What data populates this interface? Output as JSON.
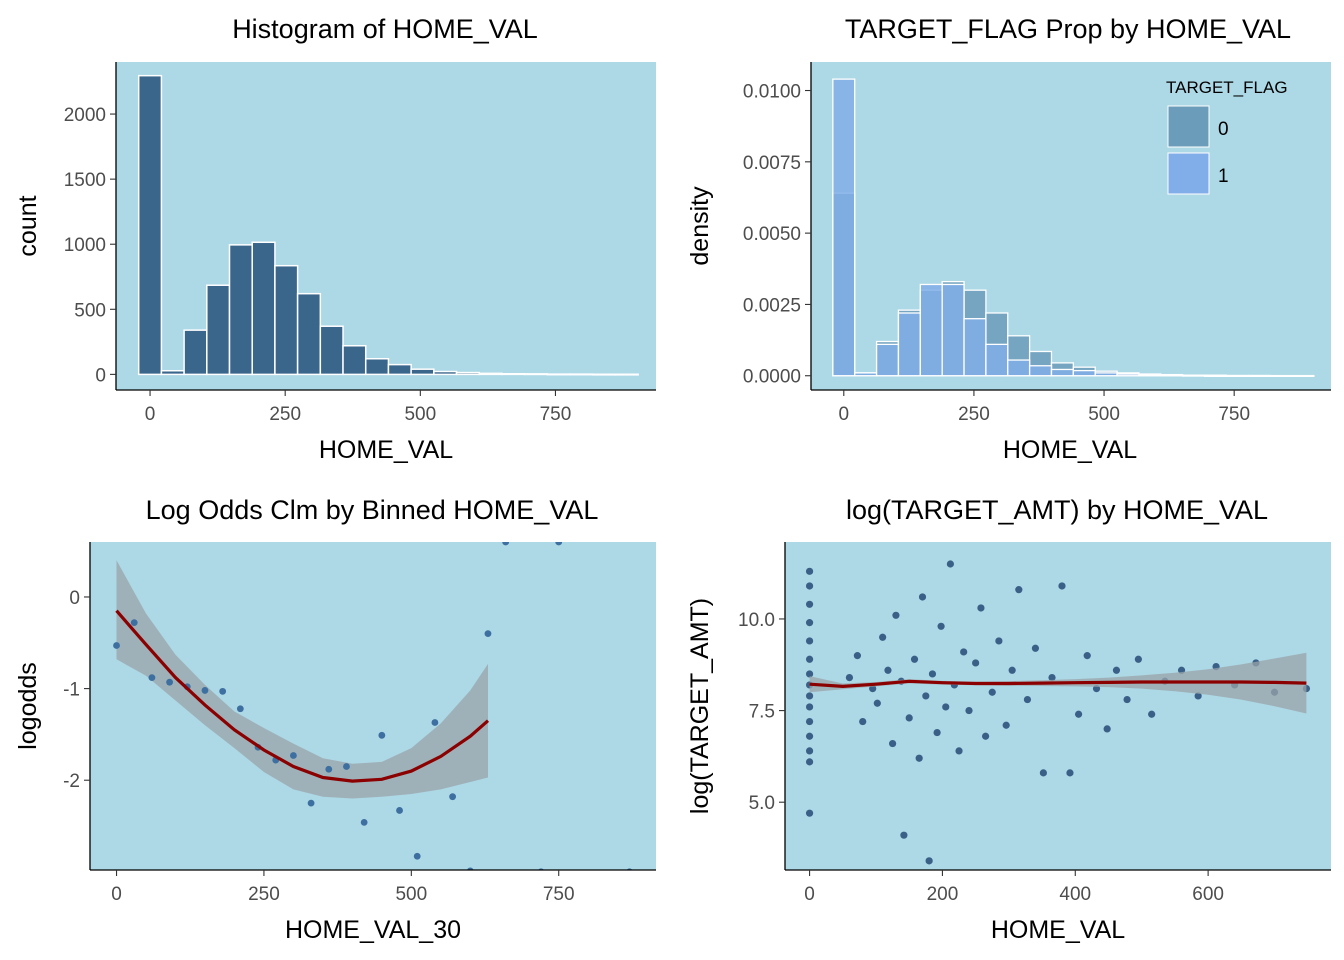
{
  "figure": {
    "panel_background": "#add8e6",
    "colors": {
      "bar_fill": "#3a668c",
      "bar_outline": "#ffffff",
      "fill_0": "#6b9cba",
      "fill_1": "#81aee8",
      "points": "#3d6fa0",
      "scatter_points": "#3a6088",
      "smooth_line": "#8b0000",
      "ci_band": "#9aa4a8"
    }
  },
  "chart_data": [
    {
      "id": "p1",
      "type": "bar",
      "title": "Histogram of HOME_VAL",
      "xlabel": "HOME_VAL",
      "ylabel": "count",
      "xlim": [
        -63,
        936
      ],
      "ylim": [
        -120,
        2400
      ],
      "xticks": [
        0,
        250,
        500,
        750
      ],
      "yticks": [
        0,
        500,
        1000,
        1500,
        2000
      ],
      "bin_width": 42,
      "bin_starts": [
        -21,
        21,
        63,
        105,
        147,
        189,
        231,
        273,
        315,
        357,
        399,
        441,
        483,
        525,
        567,
        609,
        651,
        693,
        735,
        777,
        819,
        861
      ],
      "values": [
        2295,
        28,
        340,
        685,
        995,
        1015,
        835,
        620,
        370,
        220,
        120,
        75,
        40,
        22,
        14,
        8,
        5,
        4,
        2,
        2,
        1,
        1
      ]
    },
    {
      "id": "p2",
      "type": "bar",
      "title": "TARGET_FLAG Prop by HOME_VAL",
      "xlabel": "HOME_VAL",
      "ylabel": "density",
      "xlim": [
        -63,
        936
      ],
      "ylim": [
        -0.0005,
        0.011
      ],
      "xticks": [
        0,
        250,
        500,
        750
      ],
      "yticks": [
        0.0,
        0.0025,
        0.005,
        0.0075,
        0.01
      ],
      "ytick_labels": [
        "0.0000",
        "0.0025",
        "0.0050",
        "0.0075",
        "0.0100"
      ],
      "legend": {
        "title": "TARGET_FLAG",
        "position": "top-right",
        "entries": [
          "0",
          "1"
        ]
      },
      "bin_width": 42,
      "bin_starts": [
        -21,
        21,
        63,
        105,
        147,
        189,
        231,
        273,
        315,
        357,
        399,
        441,
        483,
        525,
        567,
        609,
        651,
        693,
        735,
        777,
        819,
        861
      ],
      "series": [
        {
          "name": "0",
          "values": [
            0.0064,
            0.0001,
            0.0012,
            0.0023,
            0.003,
            0.0033,
            0.003,
            0.0022,
            0.0014,
            0.00085,
            0.00045,
            0.0003,
            0.00016,
            0.0001,
            6e-05,
            4e-05,
            2e-05,
            2e-05,
            1e-05,
            1e-05,
            5e-06,
            5e-06
          ]
        },
        {
          "name": "1",
          "values": [
            0.0104,
            0.0001,
            0.0011,
            0.0022,
            0.0032,
            0.0032,
            0.002,
            0.0011,
            0.00055,
            0.00035,
            0.00022,
            0.00018,
            0.0001,
            6e-05,
            4e-05,
            2e-05,
            1e-05,
            0.0,
            0.0,
            0.0,
            0.0,
            0.0
          ]
        }
      ]
    },
    {
      "id": "p3",
      "type": "scatter",
      "title": "Log Odds Clm by Binned HOME_VAL",
      "xlabel": "HOME_VAL_30",
      "ylabel": "logodds",
      "xlim": [
        -45,
        915
      ],
      "ylim": [
        -2.98,
        0.6
      ],
      "xticks": [
        0,
        250,
        500,
        750
      ],
      "yticks": [
        -2,
        -1,
        0
      ],
      "points": [
        {
          "x": 0,
          "y": -0.53
        },
        {
          "x": 30,
          "y": -0.28
        },
        {
          "x": 60,
          "y": -0.88
        },
        {
          "x": 90,
          "y": -0.93
        },
        {
          "x": 120,
          "y": -0.98
        },
        {
          "x": 150,
          "y": -1.02
        },
        {
          "x": 180,
          "y": -1.03
        },
        {
          "x": 210,
          "y": -1.22
        },
        {
          "x": 240,
          "y": -1.64
        },
        {
          "x": 270,
          "y": -1.78
        },
        {
          "x": 300,
          "y": -1.73
        },
        {
          "x": 330,
          "y": -2.25
        },
        {
          "x": 360,
          "y": -1.88
        },
        {
          "x": 390,
          "y": -1.85
        },
        {
          "x": 420,
          "y": -2.46
        },
        {
          "x": 450,
          "y": -1.51
        },
        {
          "x": 480,
          "y": -2.33
        },
        {
          "x": 510,
          "y": -2.83
        },
        {
          "x": 540,
          "y": -1.37
        },
        {
          "x": 570,
          "y": -2.18
        },
        {
          "x": 600,
          "y": -2.99
        },
        {
          "x": 630,
          "y": -0.4
        },
        {
          "x": 660,
          "y": 0.6
        },
        {
          "x": 720,
          "y": -3.0
        },
        {
          "x": 750,
          "y": 0.6
        },
        {
          "x": 870,
          "y": -3.0
        }
      ],
      "smooth": {
        "x": [
          0,
          50,
          100,
          150,
          200,
          250,
          300,
          350,
          400,
          450,
          500,
          550,
          600,
          630
        ],
        "y": [
          -0.15,
          -0.52,
          -0.88,
          -1.18,
          -1.45,
          -1.67,
          -1.85,
          -1.97,
          -2.01,
          -1.99,
          -1.9,
          -1.74,
          -1.52,
          -1.35
        ],
        "lower": [
          -0.68,
          -0.86,
          -1.13,
          -1.4,
          -1.65,
          -1.91,
          -2.1,
          -2.18,
          -2.2,
          -2.18,
          -2.15,
          -2.1,
          -2.02,
          -1.97
        ],
        "upper": [
          0.4,
          -0.18,
          -0.63,
          -0.96,
          -1.25,
          -1.43,
          -1.6,
          -1.76,
          -1.82,
          -1.8,
          -1.65,
          -1.38,
          -1.02,
          -0.73
        ]
      }
    },
    {
      "id": "p4",
      "type": "scatter",
      "title": "log(TARGET_AMT) by HOME_VAL",
      "xlabel": "HOME_VAL",
      "ylabel": "log(TARGET_AMT)",
      "xlim": [
        -37,
        785
      ],
      "ylim": [
        3.15,
        12.1
      ],
      "xticks": [
        0,
        200,
        400,
        600
      ],
      "yticks": [
        5.0,
        7.5,
        10.0
      ],
      "ytick_labels": [
        "5.0",
        "7.5",
        "10.0"
      ],
      "points": [
        {
          "x": 0,
          "y": 11.3
        },
        {
          "x": 0,
          "y": 10.9
        },
        {
          "x": 0,
          "y": 10.4
        },
        {
          "x": 0,
          "y": 9.9
        },
        {
          "x": 0,
          "y": 9.4
        },
        {
          "x": 0,
          "y": 8.9
        },
        {
          "x": 0,
          "y": 8.5
        },
        {
          "x": 0,
          "y": 8.2
        },
        {
          "x": 0,
          "y": 7.9
        },
        {
          "x": 0,
          "y": 7.6
        },
        {
          "x": 0,
          "y": 7.2
        },
        {
          "x": 0,
          "y": 6.8
        },
        {
          "x": 0,
          "y": 6.4
        },
        {
          "x": 0,
          "y": 6.1
        },
        {
          "x": 0,
          "y": 4.7
        },
        {
          "x": 60,
          "y": 8.4
        },
        {
          "x": 72,
          "y": 9.0
        },
        {
          "x": 80,
          "y": 7.2
        },
        {
          "x": 95,
          "y": 8.1
        },
        {
          "x": 102,
          "y": 7.7
        },
        {
          "x": 110,
          "y": 9.5
        },
        {
          "x": 118,
          "y": 8.6
        },
        {
          "x": 125,
          "y": 6.6
        },
        {
          "x": 130,
          "y": 10.1
        },
        {
          "x": 138,
          "y": 8.3
        },
        {
          "x": 142,
          "y": 4.1
        },
        {
          "x": 150,
          "y": 7.3
        },
        {
          "x": 158,
          "y": 8.9
        },
        {
          "x": 165,
          "y": 6.2
        },
        {
          "x": 170,
          "y": 10.6
        },
        {
          "x": 175,
          "y": 7.9
        },
        {
          "x": 180,
          "y": 3.4
        },
        {
          "x": 185,
          "y": 8.5
        },
        {
          "x": 192,
          "y": 6.9
        },
        {
          "x": 198,
          "y": 9.8
        },
        {
          "x": 205,
          "y": 7.6
        },
        {
          "x": 212,
          "y": 11.5
        },
        {
          "x": 218,
          "y": 8.2
        },
        {
          "x": 225,
          "y": 6.4
        },
        {
          "x": 232,
          "y": 9.1
        },
        {
          "x": 240,
          "y": 7.5
        },
        {
          "x": 250,
          "y": 8.8
        },
        {
          "x": 258,
          "y": 10.3
        },
        {
          "x": 265,
          "y": 6.8
        },
        {
          "x": 275,
          "y": 8.0
        },
        {
          "x": 285,
          "y": 9.4
        },
        {
          "x": 296,
          "y": 7.1
        },
        {
          "x": 305,
          "y": 8.6
        },
        {
          "x": 315,
          "y": 10.8
        },
        {
          "x": 328,
          "y": 7.8
        },
        {
          "x": 340,
          "y": 9.2
        },
        {
          "x": 352,
          "y": 5.8
        },
        {
          "x": 365,
          "y": 8.4
        },
        {
          "x": 380,
          "y": 10.9
        },
        {
          "x": 392,
          "y": 5.8
        },
        {
          "x": 405,
          "y": 7.4
        },
        {
          "x": 418,
          "y": 9.0
        },
        {
          "x": 432,
          "y": 8.1
        },
        {
          "x": 448,
          "y": 7.0
        },
        {
          "x": 462,
          "y": 8.6
        },
        {
          "x": 478,
          "y": 7.8
        },
        {
          "x": 495,
          "y": 8.9
        },
        {
          "x": 515,
          "y": 7.4
        },
        {
          "x": 535,
          "y": 8.3
        },
        {
          "x": 560,
          "y": 8.6
        },
        {
          "x": 585,
          "y": 7.9
        },
        {
          "x": 612,
          "y": 8.7
        },
        {
          "x": 640,
          "y": 8.2
        },
        {
          "x": 672,
          "y": 8.8
        },
        {
          "x": 700,
          "y": 8.0
        },
        {
          "x": 748,
          "y": 8.1
        }
      ],
      "smooth": {
        "x": [
          0,
          50,
          100,
          150,
          200,
          250,
          300,
          350,
          400,
          450,
          500,
          550,
          600,
          650,
          700,
          748
        ],
        "y": [
          8.22,
          8.16,
          8.22,
          8.3,
          8.26,
          8.24,
          8.24,
          8.25,
          8.26,
          8.27,
          8.28,
          8.28,
          8.28,
          8.28,
          8.27,
          8.25
        ],
        "lower": [
          8.0,
          8.08,
          8.16,
          8.24,
          8.21,
          8.19,
          8.18,
          8.17,
          8.16,
          8.14,
          8.1,
          8.03,
          7.93,
          7.8,
          7.62,
          7.42
        ],
        "upper": [
          8.44,
          8.24,
          8.28,
          8.36,
          8.31,
          8.29,
          8.3,
          8.33,
          8.36,
          8.4,
          8.46,
          8.53,
          8.63,
          8.76,
          8.92,
          9.08
        ]
      }
    }
  ]
}
